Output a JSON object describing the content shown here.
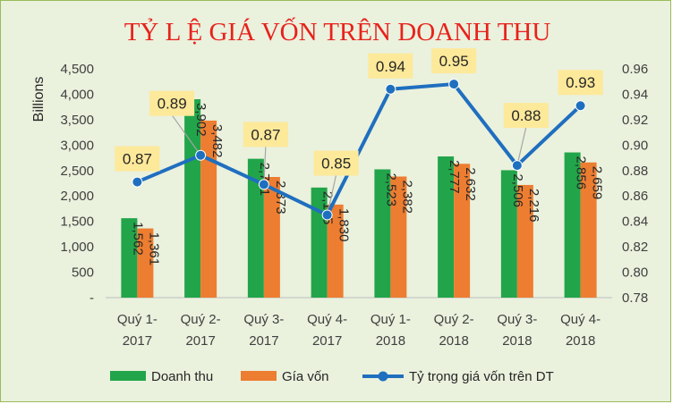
{
  "chart_data": {
    "type": "bar",
    "title": "TỶ L Ệ GIÁ VỐN TRÊN DOANH THU",
    "ylabel": "Billions",
    "ylim": [
      0,
      4500
    ],
    "y_ticks": [
      "-",
      "500",
      "1,000",
      "1,500",
      "2,000",
      "2,500",
      "3,000",
      "3,500",
      "4,000",
      "4,500"
    ],
    "y2lim": [
      0.78,
      0.96
    ],
    "y2_ticks": [
      "0.78",
      "0.80",
      "0.82",
      "0.84",
      "0.86",
      "0.88",
      "0.90",
      "0.92",
      "0.94",
      "0.96"
    ],
    "categories": [
      [
        "Quý 1-",
        "2017"
      ],
      [
        "Quý 2-",
        "2017"
      ],
      [
        "Quý 3-",
        "2017"
      ],
      [
        "Quý 4-",
        "2017"
      ],
      [
        "Quý 1-",
        "2018"
      ],
      [
        "Quý 2-",
        "2018"
      ],
      [
        "Quý 3-",
        "2018"
      ],
      [
        "Quý 4-",
        "2018"
      ]
    ],
    "series": [
      {
        "name": "Doanh thu",
        "type": "bar",
        "color": "#22a54a",
        "values": [
          1562,
          3902,
          2731,
          2165,
          2523,
          2777,
          2506,
          2856
        ],
        "labels": [
          "1,562",
          "3,902",
          "2,731",
          "2,165",
          "2,523",
          "2,777",
          "2,506",
          "2,856"
        ]
      },
      {
        "name": "Gía vốn",
        "type": "bar",
        "color": "#ed7d31",
        "values": [
          1361,
          3482,
          2373,
          1830,
          2382,
          2632,
          2216,
          2659
        ],
        "labels": [
          "1,361",
          "3,482",
          "2,373",
          "1,830",
          "2,382",
          "2,632",
          "2,216",
          "2,659"
        ]
      },
      {
        "name": "Tỷ trọng giá vốn trên DT",
        "type": "line",
        "axis": "secondary",
        "color": "#1f6fbf",
        "values": [
          0.871,
          0.892,
          0.869,
          0.845,
          0.944,
          0.948,
          0.884,
          0.931
        ],
        "labels": [
          "0.87",
          "0.89",
          "0.87",
          "0.85",
          "0.94",
          "0.95",
          "0.88",
          "0.93"
        ]
      }
    ],
    "grid": false,
    "legend": "bottom"
  }
}
